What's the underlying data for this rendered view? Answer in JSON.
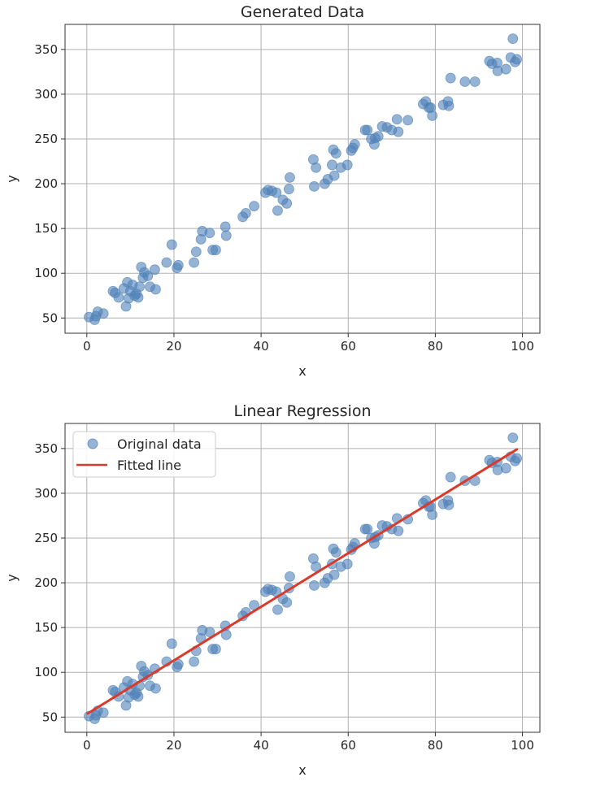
{
  "colors": {
    "point": "#4e81b8",
    "line": "#d93a2b",
    "grid": "#b0b0b0",
    "axis": "#333333"
  },
  "chart_data": [
    {
      "type": "scatter",
      "title": "Generated Data",
      "xlabel": "x",
      "ylabel": "y",
      "xlim": [
        -5,
        104
      ],
      "ylim": [
        33,
        378
      ],
      "xticks": [
        0,
        20,
        40,
        60,
        80,
        100
      ],
      "yticks": [
        50,
        100,
        150,
        200,
        250,
        300,
        350
      ],
      "grid": true,
      "series": [
        {
          "x": [
            0.5,
            1.8,
            2.1,
            2.5,
            3.8,
            6.0,
            6.5,
            7.3,
            8.5,
            9.0,
            9.3,
            9.6,
            10.0,
            10.5,
            11.0,
            11.4,
            11.8,
            12.1,
            12.5,
            12.9,
            13.2,
            14.0,
            14.5,
            15.6,
            15.8,
            18.3,
            19.5,
            20.7,
            21.0,
            24.6,
            25.1,
            26.2,
            26.5,
            28.2,
            28.9,
            29.6,
            31.8,
            32.0,
            35.8,
            36.5,
            38.4,
            41.0,
            41.6,
            42.5,
            43.5,
            43.8,
            45.0,
            45.9,
            46.4,
            46.6,
            52.0,
            52.2,
            52.6,
            54.6,
            55.3,
            56.3,
            56.6,
            56.8,
            57.2,
            58.3,
            59.8,
            60.7,
            61.1,
            61.5,
            63.9,
            64.4,
            65.3,
            66.0,
            66.2,
            66.9,
            67.8,
            68.9,
            70.0,
            71.2,
            71.5,
            73.7,
            77.2,
            77.8,
            78.5,
            78.9,
            79.3,
            81.8,
            82.9,
            83.1,
            83.5,
            86.8,
            89.1,
            92.4,
            93.0,
            94.2,
            94.3,
            96.2,
            97.3,
            97.8,
            98.3,
            98.7
          ],
          "y": [
            51,
            48,
            52,
            57,
            55,
            80,
            78,
            73,
            83,
            63,
            90,
            72,
            80,
            87,
            75,
            77,
            73,
            85,
            107,
            95,
            101,
            97,
            85,
            104,
            82,
            112,
            132,
            106,
            109,
            112,
            124,
            138,
            147,
            145,
            126,
            126,
            152,
            142,
            163,
            167,
            175,
            190,
            193,
            192,
            190,
            170,
            182,
            178,
            194,
            207,
            227,
            197,
            218,
            200,
            205,
            221,
            238,
            209,
            234,
            218,
            221,
            237,
            240,
            244,
            260,
            260,
            250,
            244,
            251,
            253,
            264,
            263,
            260,
            272,
            258,
            271,
            289,
            292,
            285,
            285,
            276,
            288,
            292,
            287,
            318,
            314,
            314,
            337,
            334,
            335,
            326,
            328,
            341,
            362,
            336,
            339
          ]
        }
      ]
    },
    {
      "type": "scatter",
      "title": "Linear Regression",
      "xlabel": "x",
      "ylabel": "y",
      "xlim": [
        -5,
        104
      ],
      "ylim": [
        33,
        378
      ],
      "xticks": [
        0,
        20,
        40,
        60,
        80,
        100
      ],
      "yticks": [
        50,
        100,
        150,
        200,
        250,
        300,
        350
      ],
      "grid": true,
      "legend_position": "upper-left",
      "series": [
        {
          "name": "Original data",
          "x": [
            0.5,
            1.8,
            2.1,
            2.5,
            3.8,
            6.0,
            6.5,
            7.3,
            8.5,
            9.0,
            9.3,
            9.6,
            10.0,
            10.5,
            11.0,
            11.4,
            11.8,
            12.1,
            12.5,
            12.9,
            13.2,
            14.0,
            14.5,
            15.6,
            15.8,
            18.3,
            19.5,
            20.7,
            21.0,
            24.6,
            25.1,
            26.2,
            26.5,
            28.2,
            28.9,
            29.6,
            31.8,
            32.0,
            35.8,
            36.5,
            38.4,
            41.0,
            41.6,
            42.5,
            43.5,
            43.8,
            45.0,
            45.9,
            46.4,
            46.6,
            52.0,
            52.2,
            52.6,
            54.6,
            55.3,
            56.3,
            56.6,
            56.8,
            57.2,
            58.3,
            59.8,
            60.7,
            61.1,
            61.5,
            63.9,
            64.4,
            65.3,
            66.0,
            66.2,
            66.9,
            67.8,
            68.9,
            70.0,
            71.2,
            71.5,
            73.7,
            77.2,
            77.8,
            78.5,
            78.9,
            79.3,
            81.8,
            82.9,
            83.1,
            83.5,
            86.8,
            89.1,
            92.4,
            93.0,
            94.2,
            94.3,
            96.2,
            97.3,
            97.8,
            98.3,
            98.7
          ],
          "y": [
            51,
            48,
            52,
            57,
            55,
            80,
            78,
            73,
            83,
            63,
            90,
            72,
            80,
            87,
            75,
            77,
            73,
            85,
            107,
            95,
            101,
            97,
            85,
            104,
            82,
            112,
            132,
            106,
            109,
            112,
            124,
            138,
            147,
            145,
            126,
            126,
            152,
            142,
            163,
            167,
            175,
            190,
            193,
            192,
            190,
            170,
            182,
            178,
            194,
            207,
            227,
            197,
            218,
            200,
            205,
            221,
            238,
            209,
            234,
            218,
            221,
            237,
            240,
            244,
            260,
            260,
            250,
            244,
            251,
            253,
            264,
            263,
            260,
            272,
            258,
            271,
            289,
            292,
            285,
            285,
            276,
            288,
            292,
            287,
            318,
            314,
            314,
            337,
            334,
            335,
            326,
            328,
            341,
            362,
            336,
            339
          ]
        },
        {
          "name": "Fitted line",
          "type": "line",
          "x": [
            0.2,
            98.7
          ],
          "y": [
            54,
            349
          ]
        }
      ]
    }
  ]
}
